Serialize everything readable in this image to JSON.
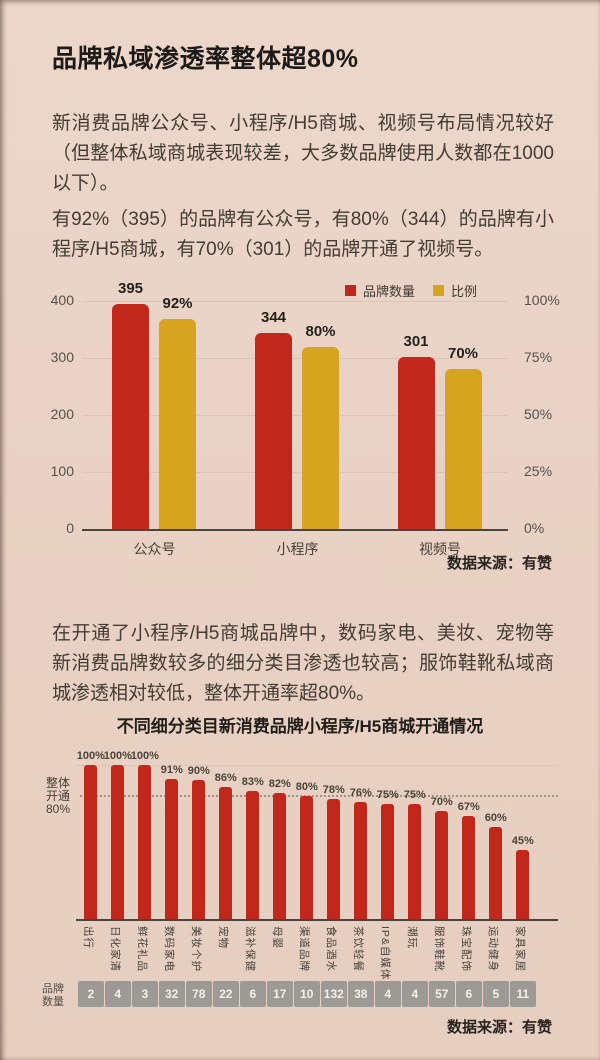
{
  "page": {
    "title": "品牌私域渗透率整体超80%",
    "paragraphs": [
      "新消费品牌公众号、小程序/H5商城、视频号布局情况较好（但整体私域商城表现较差，大多数品牌使用人数都在1000以下）。",
      "有92%（395）的品牌有公众号，有80%（344）的品牌有小程序/H5商城，有70%（301）的品牌开通了视频号。",
      "在开通了小程序/H5商城品牌中，数码家电、美妆、宠物等新消费品牌数较多的细分类目渗透也较高；服饰鞋靴私域商城渗透相对较低，整体开通率超80%。"
    ]
  },
  "colors": {
    "background": "#e9d2c5",
    "bar_red": "#c1271b",
    "bar_gold": "#d6a41f",
    "count_box_gray": "#9d9a95",
    "axis_line": "#4a443e",
    "text_dark": "#28231f"
  },
  "chart_data": [
    {
      "type": "bar",
      "title": "",
      "categories": [
        "公众号",
        "小程序",
        "视频号"
      ],
      "series": [
        {
          "name": "品牌数量",
          "axis": "left",
          "color": "#c1271b",
          "values": [
            395,
            344,
            301
          ],
          "labels": [
            "395",
            "344",
            "301"
          ]
        },
        {
          "name": "比例",
          "axis": "right",
          "color": "#d6a41f",
          "values": [
            92,
            80,
            70
          ],
          "labels": [
            "92%",
            "80%",
            "70%"
          ]
        }
      ],
      "left_axis": {
        "max": 400,
        "ticks": [
          "0",
          "100",
          "200",
          "300",
          "400"
        ]
      },
      "right_axis": {
        "max": 100,
        "ticks": [
          "0%",
          "25%",
          "50%",
          "75%",
          "100%"
        ]
      },
      "legend_position": "top",
      "grid": true,
      "source": "数据来源：有赞"
    },
    {
      "type": "bar",
      "title": "不同细分类目新消费品牌小程序/H5商城开通情况",
      "categories": [
        "出行",
        "日化家清",
        "鲜花礼品",
        "数码家电",
        "美妆个护",
        "宠物",
        "滋补保健",
        "母婴",
        "渠道品牌",
        "食品酒水",
        "茶饮轻餐",
        "IP&自媒体",
        "潮玩",
        "服饰鞋靴",
        "珠宝配饰",
        "运动健身",
        "家具家居"
      ],
      "values": [
        100,
        100,
        100,
        91,
        90,
        86,
        83,
        82,
        80,
        78,
        76,
        75,
        75,
        70,
        67,
        60,
        45
      ],
      "value_labels": [
        "100%",
        "100%",
        "100%",
        "91%",
        "90%",
        "86%",
        "83%",
        "82%",
        "80%",
        "78%",
        "76%",
        "75%",
        "75%",
        "70%",
        "67%",
        "60%",
        "45%"
      ],
      "ylim": [
        0,
        100
      ],
      "grid": false,
      "reference_line": {
        "value": 80,
        "label_lines": [
          "整体",
          "开通",
          "80%"
        ]
      },
      "count_row": {
        "label_lines": [
          "品牌",
          "数量"
        ],
        "values": [
          2,
          4,
          3,
          32,
          78,
          22,
          6,
          17,
          10,
          132,
          38,
          4,
          4,
          57,
          6,
          5,
          11
        ]
      },
      "source": "数据来源：有赞"
    }
  ]
}
